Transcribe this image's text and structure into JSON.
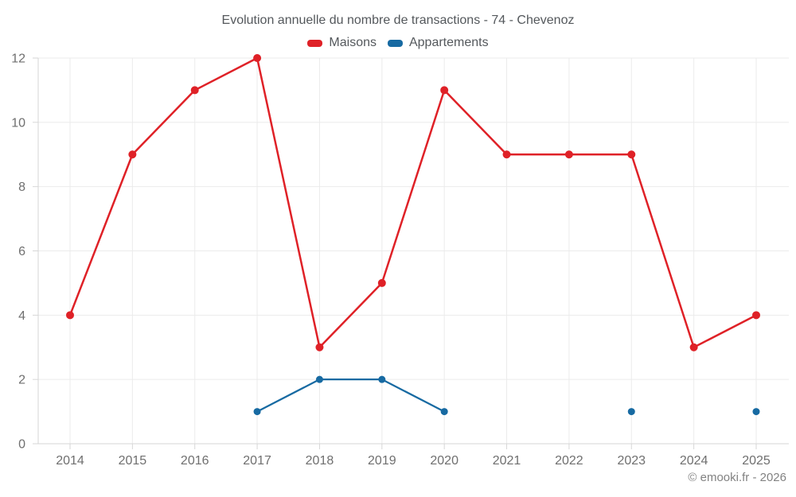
{
  "title": "Evolution annuelle du nombre de transactions - 74 - Chevenoz",
  "watermark": "© emooki.fr - 2026",
  "colors": {
    "maisons": "#df2127",
    "appartements": "#176aa2",
    "grid": "#ebebeb",
    "axis": "#d6d6d6",
    "tick_label": "#6f6f6f",
    "title_text": "#54585c",
    "watermark_text": "#828282"
  },
  "chart_data": {
    "type": "line",
    "title": "Evolution annuelle du nombre de transactions - 74 - Chevenoz",
    "categories": [
      "2014",
      "2015",
      "2016",
      "2017",
      "2018",
      "2019",
      "2020",
      "2021",
      "2022",
      "2023",
      "2024",
      "2025"
    ],
    "series": [
      {
        "name": "Maisons",
        "color": "#df2127",
        "values": [
          4,
          9,
          11,
          12,
          3,
          5,
          11,
          9,
          9,
          9,
          3,
          4
        ],
        "marker_radius": 5,
        "line_width": 2.5
      },
      {
        "name": "Appartements",
        "color": "#176aa2",
        "values": [
          null,
          null,
          null,
          1,
          2,
          2,
          1,
          null,
          null,
          1,
          null,
          1
        ],
        "marker_radius": 4.5,
        "line_width": 2.25
      }
    ],
    "xlabel": "",
    "ylabel": "",
    "ylim": [
      0,
      12
    ],
    "yticks": [
      0,
      2,
      4,
      6,
      8,
      10,
      12
    ],
    "grid": true,
    "legend_position": "top"
  }
}
